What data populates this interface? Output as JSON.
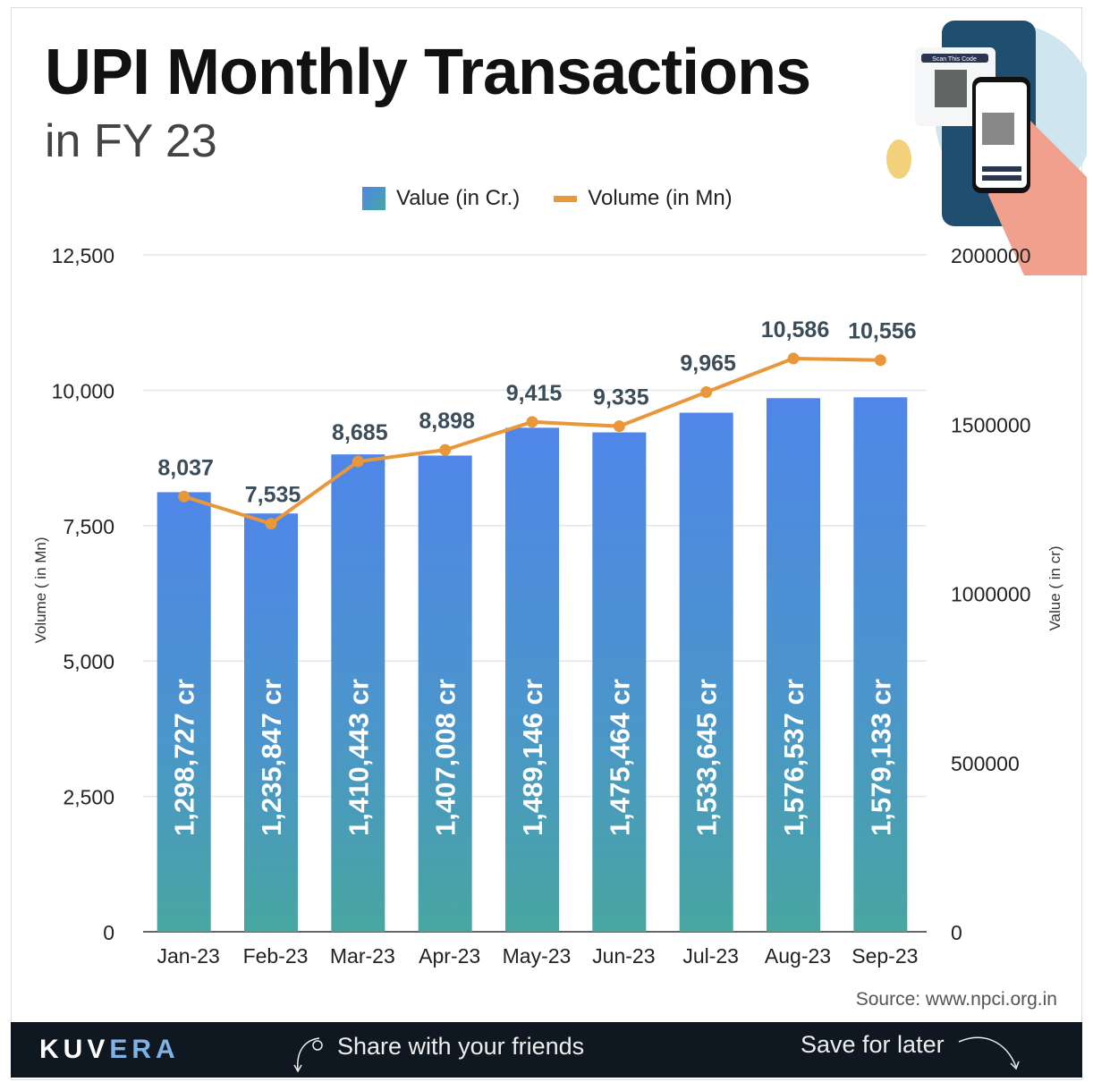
{
  "header": {
    "title": "UPI Monthly Transactions",
    "subtitle": "in FY 23"
  },
  "illustration": {
    "text": "Scan This Code"
  },
  "chart_data": {
    "type": "bar+line",
    "categories": [
      "Jan-23",
      "Feb-23",
      "Mar-23",
      "Apr-23",
      "May-23",
      "Jun-23",
      "Jul-23",
      "Aug-23",
      "Sep-23"
    ],
    "series": [
      {
        "name": "Value (in Cr.)",
        "type": "bar",
        "axis": "right",
        "values": [
          1298727,
          1235847,
          1410443,
          1407008,
          1489146,
          1475464,
          1533645,
          1576537,
          1579133
        ],
        "labels": [
          "1,298,727 cr",
          "1,235,847 cr",
          "1,410,443 cr",
          "1,407,008 cr",
          "1,489,146 cr",
          "1,475,464 cr",
          "1,533,645 cr",
          "1,576,537 cr",
          "1,579,133 cr"
        ],
        "color": "#4f86e8",
        "color_bottom": "#47a6a0"
      },
      {
        "name": "Volume (in Mn)",
        "type": "line",
        "axis": "left",
        "values": [
          8037,
          7535,
          8685,
          8898,
          9415,
          9335,
          9965,
          10586,
          10556
        ],
        "labels": [
          "8,037",
          "7,535",
          "8,685",
          "8,898",
          "9,415",
          "9,335",
          "9,965",
          "10,586",
          "10,556"
        ],
        "color": "#e8973a"
      }
    ],
    "ylabel_left": "Volume ( in Mn)",
    "ylim_left": [
      0,
      12500
    ],
    "yticks_left": [
      "0",
      "2,500",
      "5,000",
      "7,500",
      "10,000",
      "12,500"
    ],
    "ylabel_right": "Value ( in cr)",
    "ylim_right": [
      0,
      2000000
    ],
    "yticks_right": [
      "0",
      "500000",
      "1000000",
      "1500000",
      "2000000"
    ],
    "grid": true,
    "legend": "top-center"
  },
  "source": "Source: www.npci.org.in",
  "footer": {
    "logo": "KUVERA",
    "share": "Share with your friends",
    "save": "Save for later"
  }
}
